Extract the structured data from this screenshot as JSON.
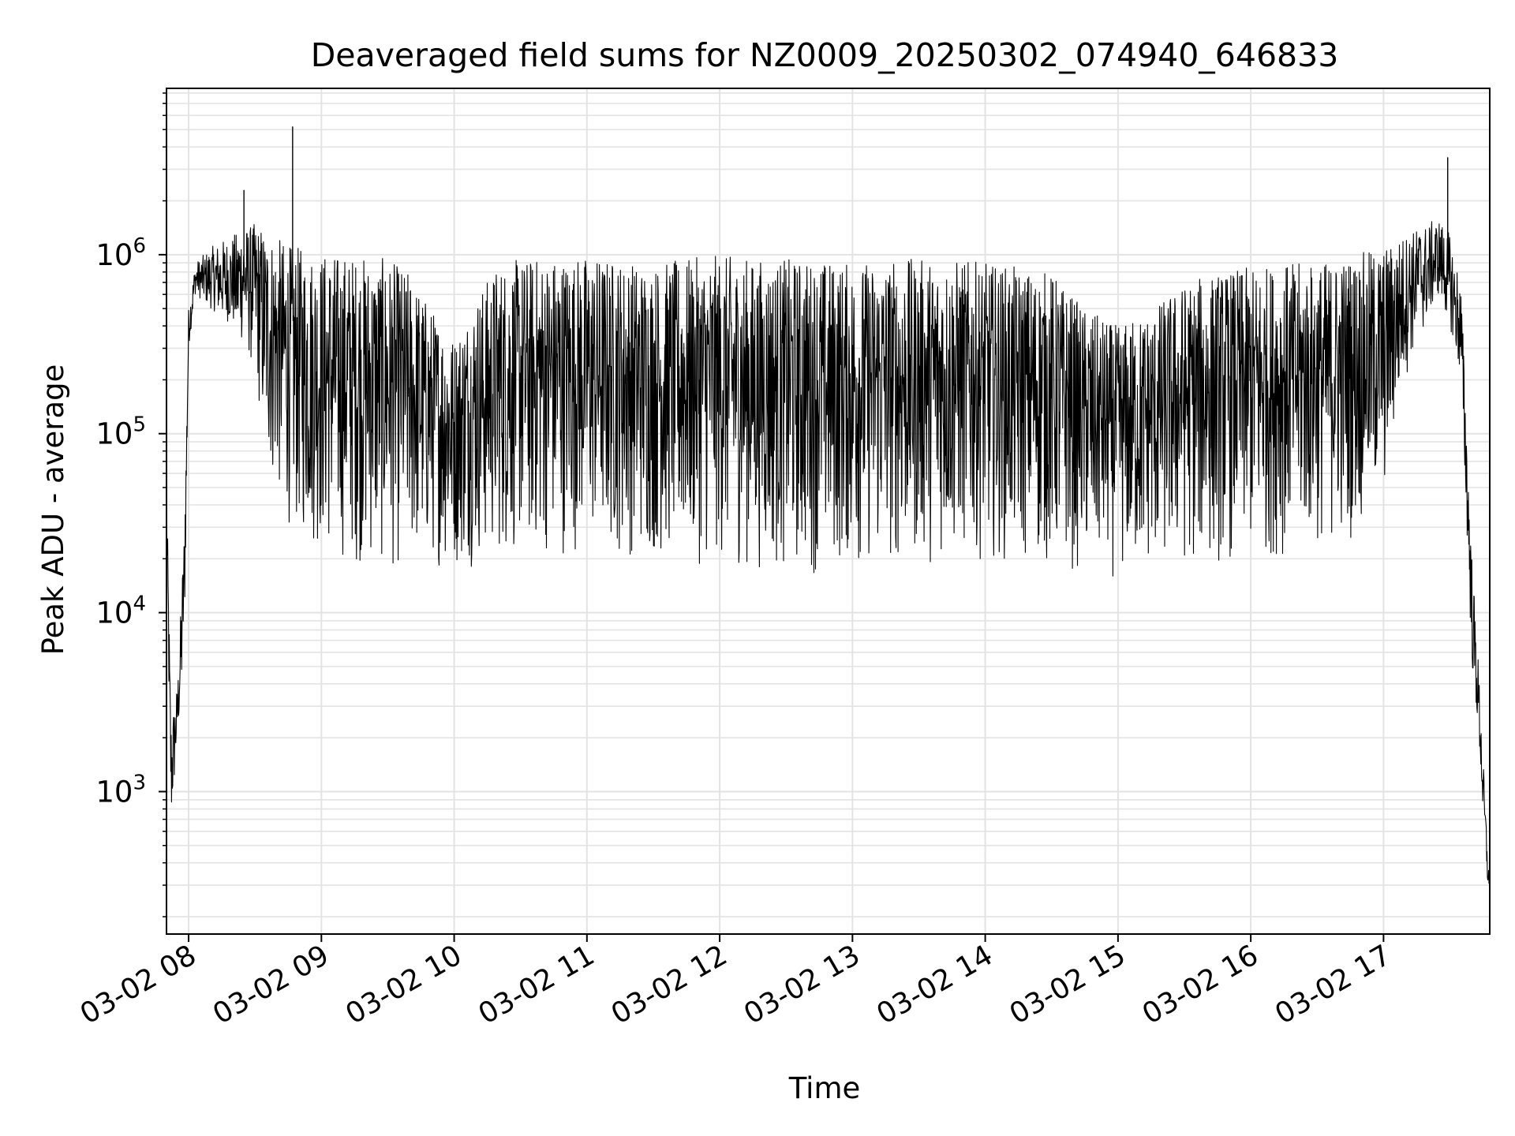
{
  "chart_data": {
    "type": "line",
    "title": "Deaveraged field sums for NZ0009_20250302_074940_646833",
    "xlabel": "Time",
    "ylabel": "Peak ADU - average",
    "yscale": "log",
    "xlim": [
      "03-02 07:50",
      "03-02 17:48"
    ],
    "ylim": [
      160,
      8500000
    ],
    "grid": true,
    "x_ticks": [
      "03-02 08",
      "03-02 09",
      "03-02 10",
      "03-02 11",
      "03-02 12",
      "03-02 13",
      "03-02 14",
      "03-02 15",
      "03-02 16",
      "03-02 17"
    ],
    "y_ticks": [
      {
        "base": "10",
        "exp": "3",
        "value": 1000
      },
      {
        "base": "10",
        "exp": "4",
        "value": 10000
      },
      {
        "base": "10",
        "exp": "5",
        "value": 100000
      },
      {
        "base": "10",
        "exp": "6",
        "value": 1000000
      }
    ],
    "series": [
      {
        "color": "#000000",
        "envelope": {
          "t": [
            "07:50",
            "07:52",
            "07:55",
            "07:58",
            "08:00",
            "08:03",
            "08:10",
            "08:20",
            "08:30",
            "08:35",
            "08:40",
            "08:45",
            "08:50",
            "09:00",
            "09:15",
            "09:30",
            "09:40",
            "09:50",
            "10:00",
            "10:10",
            "10:20",
            "10:30",
            "10:45",
            "11:00",
            "11:15",
            "11:30",
            "11:45",
            "12:00",
            "12:15",
            "12:30",
            "12:45",
            "13:00",
            "13:15",
            "13:30",
            "13:45",
            "14:00",
            "14:15",
            "14:30",
            "14:45",
            "15:00",
            "15:15",
            "15:30",
            "15:45",
            "16:00",
            "16:15",
            "16:30",
            "16:45",
            "17:00",
            "17:10",
            "17:20",
            "17:25",
            "17:30",
            "17:35",
            "17:40",
            "17:43",
            "17:45",
            "17:47",
            "17:48"
          ],
          "upper": [
            60000,
            2500,
            4000,
            30000,
            500000,
            900000,
            1100000,
            1300000,
            1500000,
            1400000,
            1250000,
            1150000,
            1100000,
            1050000,
            1000000,
            950000,
            800000,
            500000,
            350000,
            600000,
            900000,
            950000,
            1000000,
            1000000,
            950000,
            900000,
            950000,
            1000000,
            950000,
            950000,
            950000,
            900000,
            950000,
            950000,
            950000,
            900000,
            850000,
            800000,
            500000,
            400000,
            500000,
            700000,
            800000,
            850000,
            900000,
            900000,
            1000000,
            1100000,
            1300000,
            1500000,
            1600000,
            1300000,
            700000,
            20000,
            5000,
            1500,
            500,
            300
          ],
          "lower": [
            15000,
            600,
            2000,
            5000,
            300000,
            600000,
            500000,
            400000,
            200000,
            60000,
            40000,
            30000,
            25000,
            20000,
            18000,
            16000,
            17000,
            18000,
            17000,
            18000,
            19000,
            20000,
            20000,
            22000,
            20000,
            19000,
            18000,
            18000,
            17000,
            16000,
            16000,
            17000,
            17000,
            18000,
            19000,
            20000,
            18000,
            17000,
            16000,
            15000,
            16000,
            17000,
            18000,
            19000,
            20000,
            22000,
            25000,
            40000,
            200000,
            450000,
            600000,
            400000,
            200000,
            5000,
            2000,
            700,
            300,
            250
          ]
        },
        "spikes": [
          {
            "t": "08:25",
            "value": 2300000
          },
          {
            "t": "08:47",
            "value": 5200000
          },
          {
            "t": "17:29",
            "value": 3500000
          }
        ]
      }
    ]
  }
}
